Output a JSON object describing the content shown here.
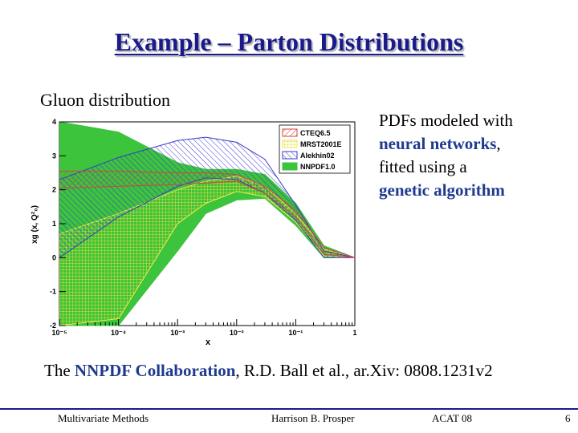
{
  "slide": {
    "title": "Example – Parton Distributions",
    "subtitle": "Gluon distribution",
    "text_line1_a": "PDFs modeled with",
    "text_line2_a": "neural networks",
    "text_line2_b": ",",
    "text_line3_a": "fitted using a",
    "text_line4_a": "genetic algorithm",
    "citation_a": "The ",
    "citation_b": "NNPDF Collaboration",
    "citation_c": ",  R.D. Ball et al., ar.Xiv: 0808.1231v2"
  },
  "footer": {
    "left": "Multivariate Methods",
    "center": "Harrison B. Prosper",
    "right": "ACAT 08",
    "page": "6"
  },
  "chart_data": {
    "type": "area",
    "xlabel": "x",
    "ylabel": "xg (x, Q²₀)",
    "x_scale": "log",
    "xlim": [
      1e-05,
      1
    ],
    "ylim": [
      -2,
      4
    ],
    "x_tick_labels": [
      "10⁻⁵",
      "10⁻⁴",
      "10⁻³",
      "10⁻²",
      "10⁻¹",
      "1"
    ],
    "y_tick_labels": [
      "-2",
      "-1",
      "0",
      "1",
      "2",
      "3",
      "4"
    ],
    "legend_position": "top-right",
    "colors": {
      "green": "#3cc43c",
      "red": "#d94040",
      "yellow": "#f2e84a",
      "blue": "#3a3acd"
    },
    "series": [
      {
        "name": "CTEQ6.5",
        "style": "red-hatched",
        "x": [
          1e-05,
          0.0001,
          0.001,
          0.003,
          0.01,
          0.03,
          0.1,
          0.3,
          1
        ],
        "lower": [
          2.05,
          2.1,
          2.15,
          2.2,
          2.25,
          1.9,
          1.2,
          0.1,
          0.0
        ],
        "upper": [
          2.55,
          2.55,
          2.5,
          2.5,
          2.45,
          2.1,
          1.4,
          0.3,
          0.0
        ]
      },
      {
        "name": "MRST2001E",
        "style": "yellow-hatched",
        "x": [
          1e-05,
          0.0001,
          0.001,
          0.003,
          0.01,
          0.03,
          0.1,
          0.3,
          1
        ],
        "lower": [
          -2.0,
          -1.8,
          1.0,
          1.6,
          1.95,
          1.8,
          1.05,
          0.05,
          0.0
        ],
        "upper": [
          0.7,
          1.3,
          2.0,
          2.25,
          2.4,
          2.1,
          1.3,
          0.25,
          0.0
        ]
      },
      {
        "name": "Alekhin02",
        "style": "blue-hatched",
        "x": [
          1e-05,
          0.0001,
          0.001,
          0.003,
          0.01,
          0.03,
          0.1,
          0.3,
          1
        ],
        "lower": [
          0.0,
          1.2,
          2.1,
          2.35,
          2.3,
          1.9,
          1.1,
          0.0,
          0.0
        ],
        "upper": [
          2.3,
          2.95,
          3.45,
          3.55,
          3.4,
          2.9,
          1.55,
          0.2,
          0.0
        ]
      },
      {
        "name": "NNPDF1.0",
        "style": "green-filled",
        "x": [
          1e-05,
          0.0001,
          0.001,
          0.003,
          0.01,
          0.03,
          0.1,
          0.3,
          1
        ],
        "lower": [
          -2.0,
          -2.0,
          0.2,
          1.3,
          1.7,
          1.75,
          0.95,
          0.0,
          0.0
        ],
        "upper": [
          4.0,
          3.7,
          2.8,
          2.6,
          2.6,
          2.45,
          1.6,
          0.35,
          0.0
        ]
      }
    ]
  }
}
